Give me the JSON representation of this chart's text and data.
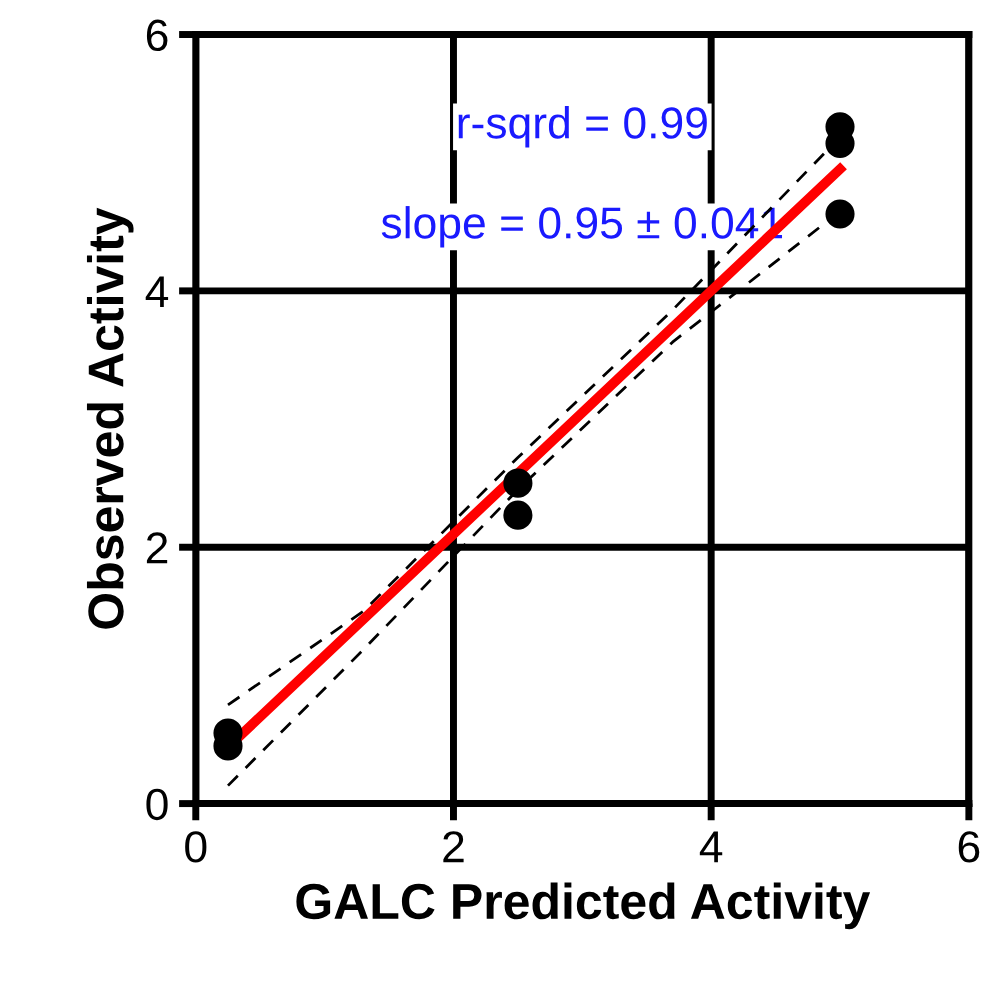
{
  "chart_data": {
    "type": "scatter",
    "xlabel": "GALC Predicted Activity",
    "ylabel": "Observed Activity",
    "annotations": [
      "r-sqrd = 0.99",
      "slope = 0.95 ± 0.041"
    ],
    "xlim": [
      0,
      6
    ],
    "ylim": [
      0,
      6
    ],
    "xticks": [
      0,
      2,
      4,
      6
    ],
    "yticks": [
      0,
      2,
      4,
      6
    ],
    "grid": true,
    "series": [
      {
        "marker": "circle",
        "color": "#000000",
        "x": [
          0.25,
          0.25,
          2.5,
          2.5,
          5,
          5,
          5
        ],
        "values": [
          0.55,
          0.45,
          2.5,
          2.25,
          5.28,
          5.15,
          4.6
        ]
      },
      {
        "type": "line",
        "marker": "none",
        "color": "#ff0000",
        "line_style": "solid",
        "x": [
          0.25,
          5
        ],
        "values": [
          0.44,
          4.95
        ]
      },
      {
        "type": "line",
        "marker": "none",
        "color": "#000000",
        "line_style": "dashed",
        "x": [
          0.25,
          1.3,
          2.5,
          3.7,
          5
        ],
        "values": [
          0.77,
          1.5,
          2.7,
          3.85,
          5.2
        ]
      },
      {
        "type": "line",
        "marker": "none",
        "color": "#000000",
        "line_style": "dashed",
        "x": [
          0.25,
          1.3,
          2.5,
          3.7,
          5
        ],
        "values": [
          0.14,
          1.2,
          2.45,
          3.6,
          4.62
        ]
      }
    ]
  }
}
